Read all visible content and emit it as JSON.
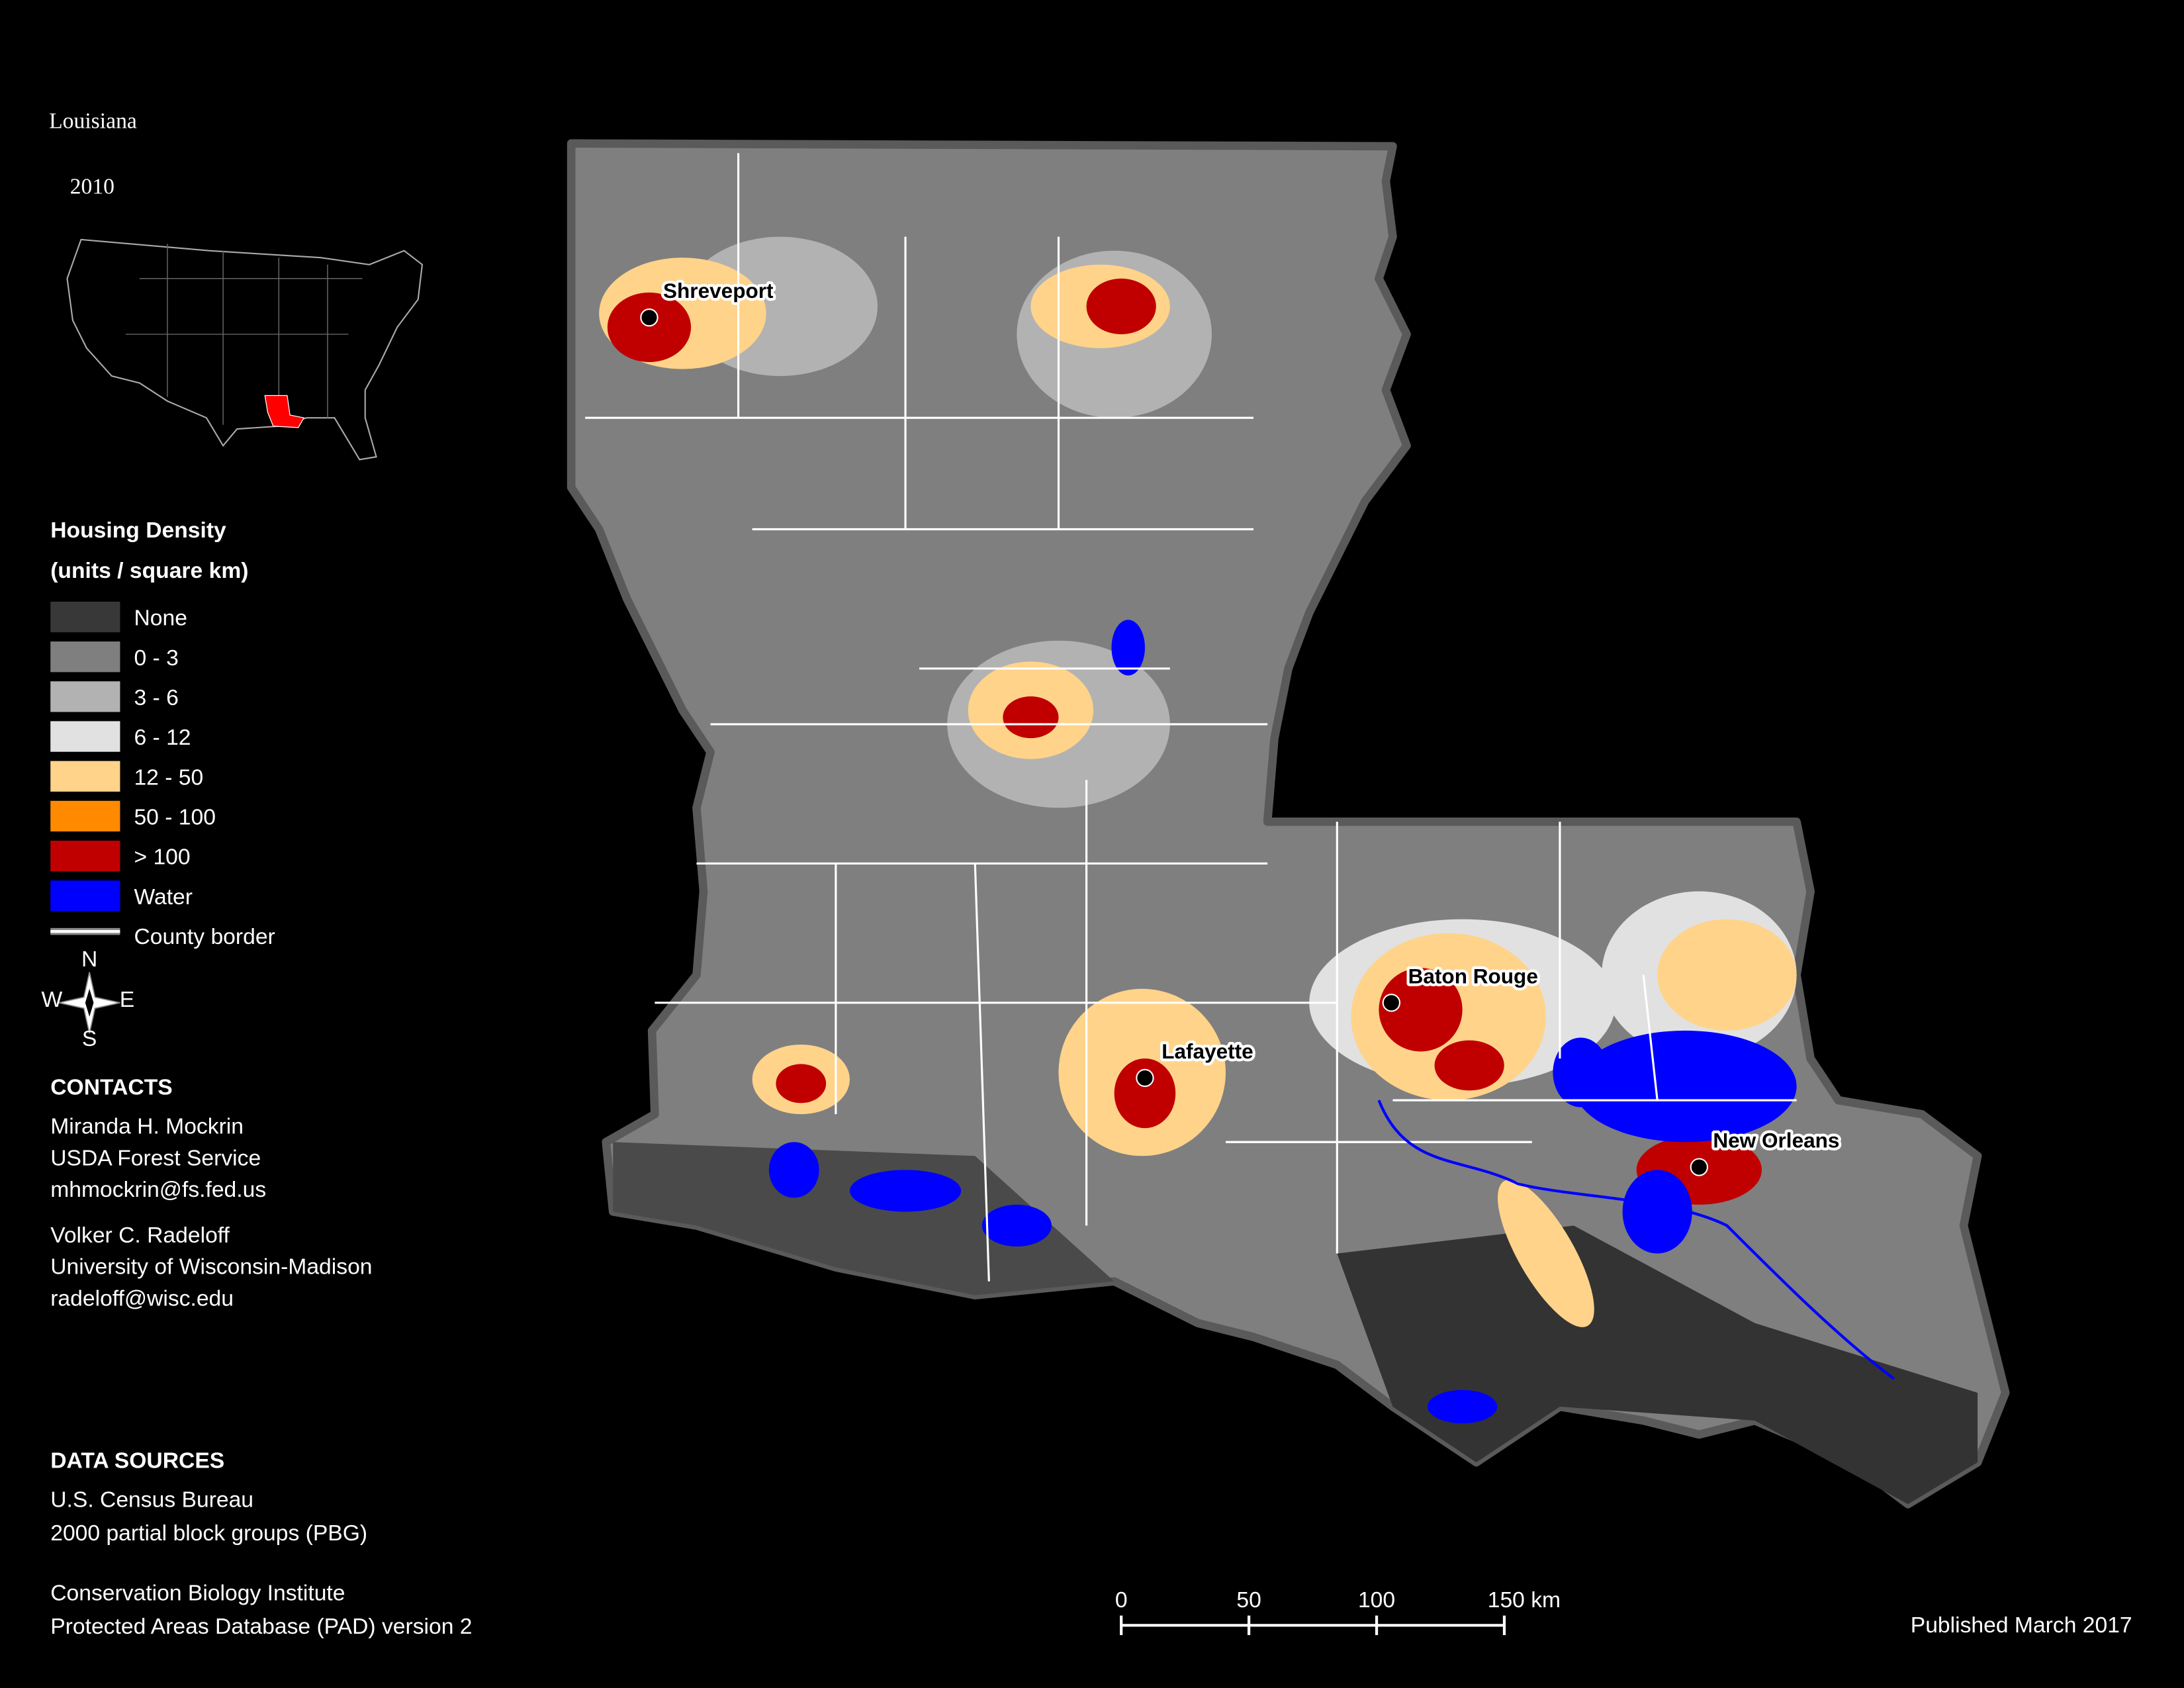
{
  "header": {
    "title": "Louisiana",
    "year": "2010"
  },
  "legend": {
    "title": "Housing Density",
    "subtitle": "(units / square km)",
    "items": [
      {
        "label": "None",
        "color": "#383838"
      },
      {
        "label": "0 - 3",
        "color": "#7f7f7f"
      },
      {
        "label": "3 - 6",
        "color": "#b2b2b2"
      },
      {
        "label": "6 - 12",
        "color": "#e1e1e1"
      },
      {
        "label": "12 - 50",
        "color": "#ffd38a"
      },
      {
        "label": "50 - 100",
        "color": "#ff8a00"
      },
      {
        "label": "> 100",
        "color": "#c00000"
      },
      {
        "label": "Water",
        "color": "#0000ff"
      },
      {
        "label": "County border",
        "color": "#ffffff"
      }
    ]
  },
  "compass": {
    "n": "N",
    "s": "S",
    "e": "E",
    "w": "W"
  },
  "contacts": {
    "title": "CONTACTS",
    "people": [
      [
        "Miranda H. Mockrin",
        "USDA Forest Service",
        "mhmockrin@fs.fed.us"
      ],
      [
        "Volker C. Radeloff",
        "University of Wisconsin-Madison",
        "radeloff@wisc.edu"
      ]
    ]
  },
  "data_sources": {
    "title": "DATA SOURCES",
    "groups": [
      [
        "U.S. Census Bureau",
        "2000 partial block groups (PBG)"
      ],
      [
        "Conservation Biology Institute",
        "Protected Areas Database (PAD) version 2"
      ]
    ]
  },
  "cities": [
    "Shreveport",
    "Baton Rouge",
    "Lafayette",
    "New Orleans"
  ],
  "scale_bar": {
    "labels": [
      "0",
      "50",
      "100",
      "150 km"
    ]
  },
  "published": "Published March 2017"
}
